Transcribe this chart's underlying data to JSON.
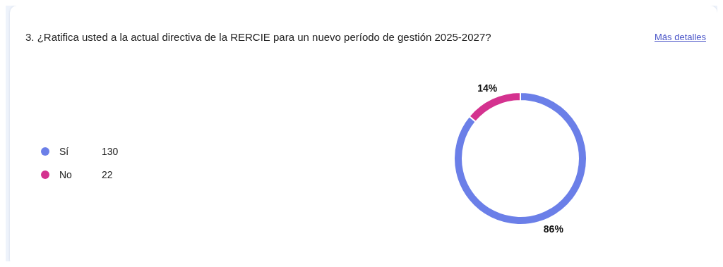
{
  "chart_data": {
    "type": "donut",
    "title": "3. ¿Ratifica usted a la actual directiva de la RERCIE para un nuevo período de gestión 2025-2027?",
    "categories": [
      "Sí",
      "No"
    ],
    "values": [
      86,
      14
    ],
    "colors": [
      "#6b7fe8",
      "#d4328f"
    ],
    "value_labels": [
      "86%",
      "14%"
    ],
    "legend": "left",
    "annotations": [
      "Más detalles",
      {
        "text": "130",
        "x": "Sí"
      },
      {
        "text": "22",
        "x": "No"
      }
    ]
  }
}
